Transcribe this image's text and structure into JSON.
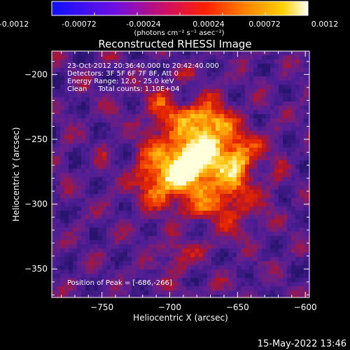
{
  "colorbar": {
    "tick_labels": [
      "-0.0012",
      "-0.00072",
      "-0.00024",
      "0.00024",
      "0.00072",
      "0.0012"
    ],
    "range": [
      -0.0012,
      0.0012
    ],
    "unit_label": "(photons cm⁻² s⁻¹ asec⁻²)"
  },
  "chart_data": {
    "type": "heatmap",
    "title": "Reconstructed RHESSI Image",
    "xlabel": "Heliocentric X (arcsec)",
    "ylabel": "Heliocentric Y (arcsec)",
    "xlim": [
      -787,
      -597
    ],
    "ylim": [
      -372,
      -182
    ],
    "x_ticks": [
      -750,
      -700,
      -650,
      -600
    ],
    "y_ticks": [
      -200,
      -250,
      -300,
      -350
    ],
    "peak_position": [
      -686,
      -266
    ],
    "annotations": [
      "23-Oct-2012 20:36:40.000 to 20:42:40.000",
      "Detectors: 3F 5F 6F 7F 8F, Att 0",
      "Energy Range: 12.0 - 25.0 keV",
      "Clean     Total counts: 1.10E+04"
    ],
    "peak_label": "Position of Peak = [-686,-266]",
    "colormap": "purple-red-yellow-white"
  },
  "footer_timestamp": "15-May-2022 13:46"
}
